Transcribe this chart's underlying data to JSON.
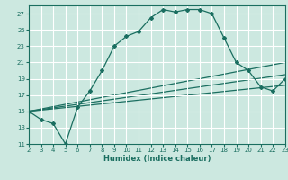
{
  "xlabel": "Humidex (Indice chaleur)",
  "bg_color": "#cce8e0",
  "grid_color": "#ffffff",
  "line_color": "#1a6e60",
  "xlim": [
    2,
    23
  ],
  "ylim": [
    11,
    28
  ],
  "xticks": [
    2,
    3,
    4,
    5,
    6,
    7,
    8,
    9,
    10,
    11,
    12,
    13,
    14,
    15,
    16,
    17,
    18,
    19,
    20,
    21,
    22,
    23
  ],
  "yticks": [
    11,
    13,
    15,
    17,
    19,
    21,
    23,
    25,
    27
  ],
  "main_line_x": [
    2,
    3,
    4,
    5,
    6,
    7,
    8,
    9,
    10,
    11,
    12,
    13,
    14,
    15,
    16,
    17,
    18,
    19,
    20,
    21,
    22,
    23
  ],
  "main_line_y": [
    15,
    14,
    13.5,
    11,
    15.5,
    17.5,
    20,
    23,
    24.2,
    24.8,
    26.5,
    27.5,
    27.2,
    27.5,
    27.5,
    27.0,
    24.0,
    21.0,
    20.0,
    18.0,
    17.5,
    19.0
  ],
  "line2_x": [
    2,
    23
  ],
  "line2_y": [
    15.0,
    21.0
  ],
  "line3_x": [
    2,
    23
  ],
  "line3_y": [
    15.0,
    19.5
  ],
  "line4_x": [
    2,
    23
  ],
  "line4_y": [
    15.0,
    18.2
  ]
}
